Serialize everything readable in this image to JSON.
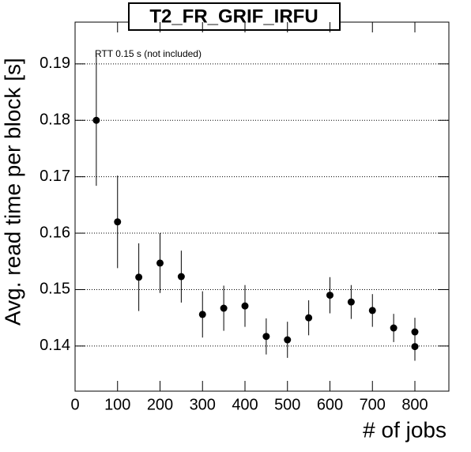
{
  "chart_data": {
    "type": "errorbar-scatter",
    "title": "T2_FR_GRIF_IRFU",
    "annotation": "RTT 0.15 s (not included)",
    "x_label": "# of jobs",
    "y_label": "Avg. read time per block [s]",
    "x": [
      50,
      100,
      150,
      200,
      250,
      300,
      350,
      400,
      450,
      500,
      550,
      600,
      650,
      700,
      750,
      800,
      800
    ],
    "series": [
      {
        "color": "#000000",
        "values": [
          0.18,
          0.162,
          0.1522,
          0.1547,
          0.1523,
          0.1456,
          0.1467,
          0.1471,
          0.1417,
          0.1411,
          0.145,
          0.149,
          0.1478,
          0.1463,
          0.1432,
          0.1425,
          0.1399
        ],
        "errors": [
          0.0116,
          0.0082,
          0.006,
          0.0053,
          0.0046,
          0.0041,
          0.004,
          0.0037,
          0.0032,
          0.0032,
          0.0031,
          0.0032,
          0.003,
          0.0029,
          0.0025,
          0.0025,
          0.0025
        ]
      }
    ],
    "xlim": [
      0,
      880
    ],
    "xticks": [
      0,
      100,
      200,
      300,
      400,
      500,
      600,
      700,
      800
    ],
    "ylim": [
      0.132,
      0.1974
    ],
    "yticks": [
      0.14,
      0.15,
      0.16,
      0.17,
      0.18,
      0.19
    ],
    "grid": true
  }
}
